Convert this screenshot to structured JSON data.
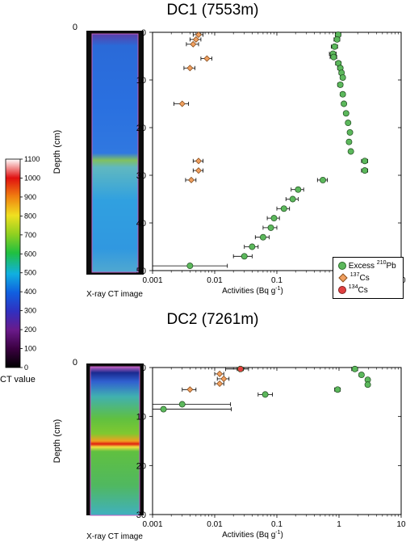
{
  "titles": {
    "dc1": "DC1 (7553m)",
    "dc2": "DC2 (7261m)"
  },
  "ct_caption": "X-ray CT image",
  "colorbar": {
    "label": "CT value",
    "ticks": [
      "1100",
      "1000",
      "900",
      "800",
      "700",
      "600",
      "500",
      "400",
      "300",
      "200",
      "100",
      "0"
    ]
  },
  "legend": {
    "items": [
      {
        "text": "Excess",
        "iso": "210",
        "elem": "Pb",
        "color": "#5cb85c",
        "shape": "circle"
      },
      {
        "text": "",
        "iso": "137",
        "elem": "Cs",
        "color": "#f0a060",
        "shape": "diamond"
      },
      {
        "text": "",
        "iso": "134",
        "elem": "Cs",
        "color": "#e04040",
        "shape": "circle"
      }
    ]
  },
  "chart_data": [
    {
      "type": "scatter",
      "title": "DC1 (7553m)",
      "xlabel": "Activities (Bq g",
      "xlabel_sup": "-1",
      "xlabel_close": ")",
      "ylabel": "Depth (cm)",
      "xscale": "log",
      "xlim": [
        0.001,
        10
      ],
      "ylim": [
        0,
        50
      ],
      "xticks": [
        "0.001",
        "0.01",
        "0.1",
        "1",
        "10"
      ],
      "yticks": [
        "0",
        "10",
        "20",
        "30",
        "40",
        "50"
      ],
      "series": [
        {
          "name": "Excess 210Pb",
          "marker": "circle",
          "color": "#5cb85c",
          "points": [
            [
              0.97,
              0.5
            ],
            [
              0.93,
              1.5
            ],
            [
              0.85,
              3.0
            ],
            [
              0.8,
              4.5
            ],
            [
              0.82,
              5.2
            ],
            [
              0.98,
              6.5
            ],
            [
              1.05,
              7.5
            ],
            [
              1.1,
              8.5
            ],
            [
              1.15,
              9.5
            ],
            [
              1.05,
              11.0
            ],
            [
              1.15,
              13.0
            ],
            [
              1.2,
              15.0
            ],
            [
              1.3,
              17.0
            ],
            [
              1.4,
              19.0
            ],
            [
              1.5,
              21.0
            ],
            [
              1.45,
              23.0
            ],
            [
              1.55,
              25.0
            ],
            [
              2.6,
              27.0
            ],
            [
              2.6,
              29.0
            ],
            [
              0.55,
              31.0
            ],
            [
              0.22,
              33.0
            ],
            [
              0.18,
              35.0
            ],
            [
              0.13,
              37.0
            ],
            [
              0.09,
              39.0
            ],
            [
              0.08,
              41.0
            ],
            [
              0.06,
              43.0
            ],
            [
              0.04,
              45.0
            ],
            [
              0.03,
              47.0
            ],
            [
              0.004,
              49.0
            ]
          ],
          "xerr_lo": [
            0.1,
            0.1,
            0.1,
            0.1,
            0.1,
            0.1,
            0.1,
            0.1,
            0.1,
            0.1,
            0.1,
            0.1,
            0.1,
            0.1,
            0.1,
            0.1,
            0.1,
            0.3,
            0.3,
            0.1,
            0.05,
            0.04,
            0.03,
            0.02,
            0.02,
            0.015,
            0.01,
            0.01,
            0.003
          ],
          "xerr_hi": [
            0.1,
            0.1,
            0.1,
            0.1,
            0.1,
            0.1,
            0.1,
            0.1,
            0.1,
            0.1,
            0.1,
            0.1,
            0.1,
            0.1,
            0.1,
            0.1,
            0.1,
            0.3,
            0.3,
            0.1,
            0.05,
            0.04,
            0.03,
            0.02,
            0.02,
            0.015,
            0.01,
            0.01,
            0.012
          ]
        },
        {
          "name": "137Cs",
          "marker": "diamond",
          "color": "#f0a060",
          "points": [
            [
              0.0055,
              0.5
            ],
            [
              0.005,
              1.5
            ],
            [
              0.0045,
              2.5
            ],
            [
              0.0075,
              5.5
            ],
            [
              0.004,
              7.5
            ],
            [
              0.003,
              15.0
            ],
            [
              0.0055,
              27.0
            ],
            [
              0.0055,
              29.0
            ],
            [
              0.0042,
              31.0
            ]
          ],
          "xerr": [
            0.001,
            0.001,
            0.001,
            0.0015,
            0.0008,
            0.0008,
            0.001,
            0.001,
            0.0008
          ]
        }
      ]
    },
    {
      "type": "scatter",
      "title": "DC2 (7261m)",
      "xlabel": "Activities (Bq g",
      "xlabel_sup": "-1",
      "xlabel_close": ")",
      "ylabel": "Depth (cm)",
      "xscale": "log",
      "xlim": [
        0.001,
        10
      ],
      "ylim": [
        0,
        30
      ],
      "xticks": [
        "0.001",
        "0.01",
        "0.1",
        "1",
        "10"
      ],
      "yticks": [
        "0",
        "10",
        "20",
        "30"
      ],
      "series": [
        {
          "name": "Excess 210Pb",
          "marker": "circle",
          "color": "#5cb85c",
          "points": [
            [
              1.8,
              0.3
            ],
            [
              2.3,
              1.5
            ],
            [
              2.9,
              2.5
            ],
            [
              2.9,
              3.5
            ],
            [
              0.95,
              4.5
            ],
            [
              0.065,
              5.5
            ],
            [
              0.003,
              7.5
            ],
            [
              0.0015,
              8.5
            ]
          ],
          "xerr_lo": [
            0.2,
            0.2,
            0.2,
            0.2,
            0.1,
            0.015,
            0.002,
            0.0005
          ],
          "xerr_hi": [
            0.2,
            0.2,
            0.2,
            0.2,
            0.1,
            0.02,
            0.015,
            0.017
          ]
        },
        {
          "name": "137Cs",
          "marker": "diamond",
          "color": "#f0a060",
          "points": [
            [
              0.025,
              0.3
            ],
            [
              0.012,
              1.3
            ],
            [
              0.014,
              2.3
            ],
            [
              0.012,
              3.3
            ],
            [
              0.004,
              4.5
            ]
          ],
          "xerr": [
            0.01,
            0.002,
            0.003,
            0.002,
            0.001
          ]
        },
        {
          "name": "134Cs",
          "marker": "circle",
          "color": "#e04040",
          "points": [
            [
              0.026,
              0.3
            ]
          ],
          "xerr": [
            0.003
          ]
        }
      ]
    }
  ]
}
